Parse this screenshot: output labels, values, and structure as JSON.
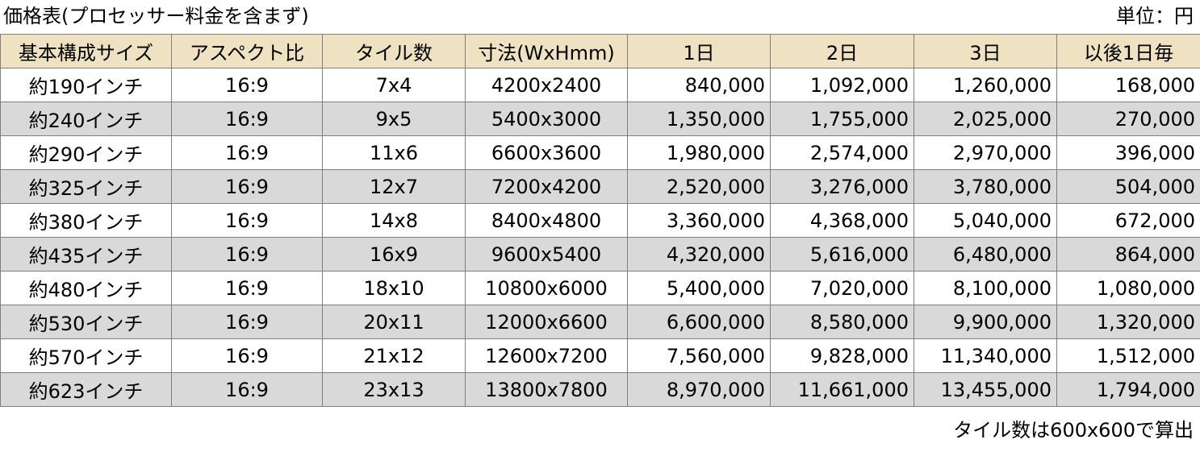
{
  "title": "価格表(プロセッサー料金を含まず)",
  "unit": "単位：円",
  "headers": [
    "基本構成サイズ",
    "アスペクト比",
    "タイル数",
    "寸法(WxHmm)",
    "1日",
    "2日",
    "3日",
    "以後1日毎"
  ],
  "rows": [
    [
      "約190インチ",
      "16:9",
      "7x4",
      "4200x2400",
      "840,000",
      "1,092,000",
      "1,260,000",
      "168,000"
    ],
    [
      "約240インチ",
      "16:9",
      "9x5",
      "5400x3000",
      "1,350,000",
      "1,755,000",
      "2,025,000",
      "270,000"
    ],
    [
      "約290インチ",
      "16:9",
      "11x6",
      "6600x3600",
      "1,980,000",
      "2,574,000",
      "2,970,000",
      "396,000"
    ],
    [
      "約325インチ",
      "16:9",
      "12x7",
      "7200x4200",
      "2,520,000",
      "3,276,000",
      "3,780,000",
      "504,000"
    ],
    [
      "約380インチ",
      "16:9",
      "14x8",
      "8400x4800",
      "3,360,000",
      "4,368,000",
      "5,040,000",
      "672,000"
    ],
    [
      "約435インチ",
      "16:9",
      "16x9",
      "9600x5400",
      "4,320,000",
      "5,616,000",
      "6,480,000",
      "864,000"
    ],
    [
      "約480インチ",
      "16:9",
      "18x10",
      "10800x6000",
      "5,400,000",
      "7,020,000",
      "8,100,000",
      "1,080,000"
    ],
    [
      "約530インチ",
      "16:9",
      "20x11",
      "12000x6600",
      "6,600,000",
      "8,580,000",
      "9,900,000",
      "1,320,000"
    ],
    [
      "約570インチ",
      "16:9",
      "21x12",
      "12600x7200",
      "7,560,000",
      "9,828,000",
      "11,340,000",
      "1,512,000"
    ],
    [
      "約623インチ",
      "16:9",
      "23x13",
      "13800x7800",
      "8,970,000",
      "11,661,000",
      "13,455,000",
      "1,794,000"
    ]
  ],
  "note": "タイル数は600x600で算出",
  "colors": {
    "header_bg": "#efe2c2",
    "alt_row_bg": "#d9d9d9",
    "border": "#7f7f7f"
  }
}
